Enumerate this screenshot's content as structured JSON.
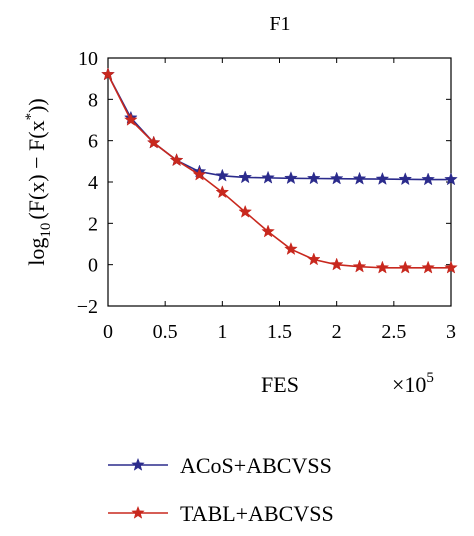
{
  "chart_data": {
    "type": "line",
    "title": "F1",
    "xlabel": "FES",
    "x_multiplier": "×10",
    "x_multiplier_exp": "5",
    "ylabel_main": "log",
    "ylabel_sub": "10",
    "ylabel_body": "(F(x) − F(x",
    "ylabel_sup": "*",
    "ylabel_tail": "))",
    "xlim": [
      0,
      3
    ],
    "ylim": [
      -2,
      10
    ],
    "x_ticks": [
      0,
      0.5,
      1,
      1.5,
      2,
      2.5,
      3
    ],
    "x_tick_labels": [
      "0",
      "0.5",
      "1",
      "1.5",
      "2",
      "2.5",
      "3"
    ],
    "y_ticks": [
      -2,
      0,
      2,
      4,
      6,
      8,
      10
    ],
    "y_tick_labels": [
      "−2",
      "0",
      "2",
      "4",
      "6",
      "8",
      "10"
    ],
    "grid": false,
    "legend_position": "bottom",
    "series": [
      {
        "name": "ACoS+ABCVSS",
        "color": "#2b2b8c",
        "marker": "star",
        "x": [
          0,
          0.2,
          0.4,
          0.6,
          0.8,
          1.0,
          1.2,
          1.4,
          1.6,
          1.8,
          2.0,
          2.2,
          2.4,
          2.6,
          2.8,
          3.0
        ],
        "y": [
          9.2,
          7.1,
          5.9,
          5.05,
          4.5,
          4.3,
          4.22,
          4.2,
          4.18,
          4.17,
          4.16,
          4.15,
          4.14,
          4.13,
          4.12,
          4.12
        ]
      },
      {
        "name": "TABL+ABCVSS",
        "color": "#c8281e",
        "marker": "star",
        "x": [
          0,
          0.2,
          0.4,
          0.6,
          0.8,
          1.0,
          1.2,
          1.4,
          1.6,
          1.8,
          2.0,
          2.2,
          2.4,
          2.6,
          2.8,
          3.0
        ],
        "y": [
          9.2,
          7.0,
          5.9,
          5.05,
          4.35,
          3.5,
          2.55,
          1.6,
          0.75,
          0.25,
          0.0,
          -0.1,
          -0.15,
          -0.15,
          -0.15,
          -0.15
        ]
      }
    ]
  }
}
